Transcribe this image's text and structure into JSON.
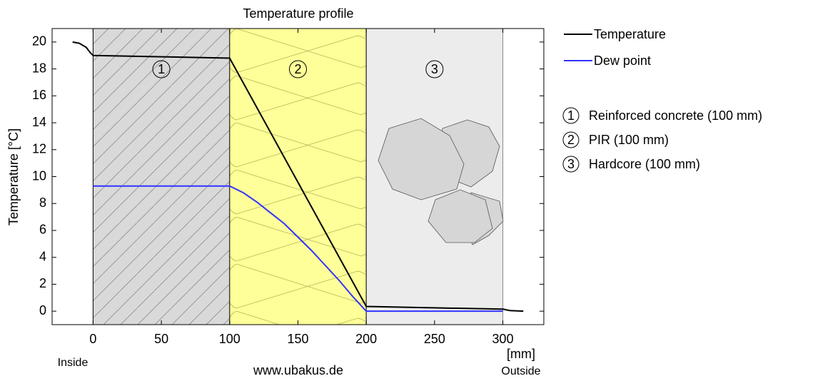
{
  "chart_data": {
    "type": "line",
    "title": "Temperature profile",
    "y_label": "Temperature  [°C]",
    "x_unit": "[mm]",
    "x_left_note": "Inside",
    "x_right_note": "Outside",
    "footer": "www.ubakus.de",
    "xlim": [
      -30,
      330
    ],
    "xticks": [
      0,
      50,
      100,
      150,
      200,
      250,
      300
    ],
    "ylim": [
      -1,
      21
    ],
    "yticks": [
      0,
      2,
      4,
      6,
      8,
      10,
      12,
      14,
      16,
      18,
      20
    ],
    "layers": [
      {
        "label": "1",
        "name": "Reinforced concrete (100 mm)",
        "start": 0,
        "end": 100,
        "color": "#d9d9d9"
      },
      {
        "label": "2",
        "name": "PIR (100 mm)",
        "start": 100,
        "end": 200,
        "color": "#ffff99"
      },
      {
        "label": "3",
        "name": "Hardcore (100 mm)",
        "start": 200,
        "end": 300,
        "color": "#ececec"
      }
    ],
    "series": [
      {
        "name": "Temperature",
        "color": "#000000",
        "x": [
          -15,
          -10,
          -5,
          -2,
          0,
          100,
          200,
          300,
          305,
          315
        ],
        "values": [
          20,
          19.9,
          19.6,
          19.2,
          19.0,
          18.8,
          0.35,
          0.15,
          0.05,
          0.0
        ]
      },
      {
        "name": "Dew point",
        "color": "#3333ff",
        "x": [
          0,
          100,
          110,
          120,
          130,
          140,
          150,
          160,
          170,
          180,
          190,
          200,
          300
        ],
        "values": [
          9.3,
          9.3,
          8.8,
          8.1,
          7.3,
          6.5,
          5.5,
          4.5,
          3.4,
          2.3,
          1.1,
          0.0,
          0.0
        ]
      }
    ]
  }
}
